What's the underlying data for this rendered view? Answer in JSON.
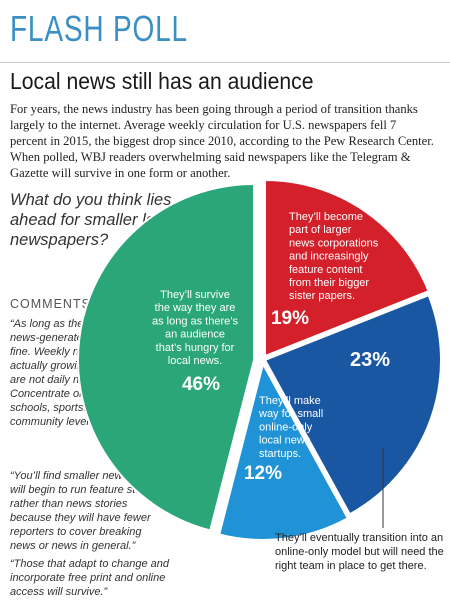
{
  "header": {
    "title": "FLASH POLL"
  },
  "headline": "Local news still has an audience",
  "intro": "For years, the news industry has been going through a period of transition thanks largely to the internet. Average weekly circulation for U.S. newspapers fell 7 percent in 2015, the biggest drop since 2010, according to the Pew Research Center. When polled, WBJ readers overwhelming said newspapers like the Telegram & Gazette will survive in one form or another.",
  "comments": {
    "heading": "COMMENTS:",
    "items": [
      "“As long as they are not daily news-generated they will be fine. Weekly newspapers are actually growing since they are not daily news-generated. Concentrate on the news: schools, sports. etc. on a community level.”",
      "“You’ll find smaller newspapers will begin to run feature stories rather than news stories because they will have fewer reporters to cover breaking news or news in general.”",
      "“Those that adapt to change and incorporate free print and online access will survive.”"
    ]
  },
  "chart_data": {
    "type": "pie",
    "title": "What do you think lies ahead for smaller local newspapers?",
    "slices": [
      {
        "label": "They’ll survive the way they are as long as there’s an audience that’s hungry for local news.",
        "value": 46,
        "display": "46%",
        "color": "#2aa679"
      },
      {
        "label": "They’ll become part of larger news corporations and increasingly feature content from their bigger sister papers.",
        "value": 19,
        "display": "19%",
        "color": "#d3202a"
      },
      {
        "label": "They’ll eventually transition into an online-only model but will need the right team in place to get there.",
        "value": 23,
        "display": "23%",
        "color": "#1a57a3"
      },
      {
        "label": "They’ll make way for small online-only local news startups.",
        "value": 12,
        "display": "12%",
        "color": "#1f93d6"
      }
    ]
  }
}
